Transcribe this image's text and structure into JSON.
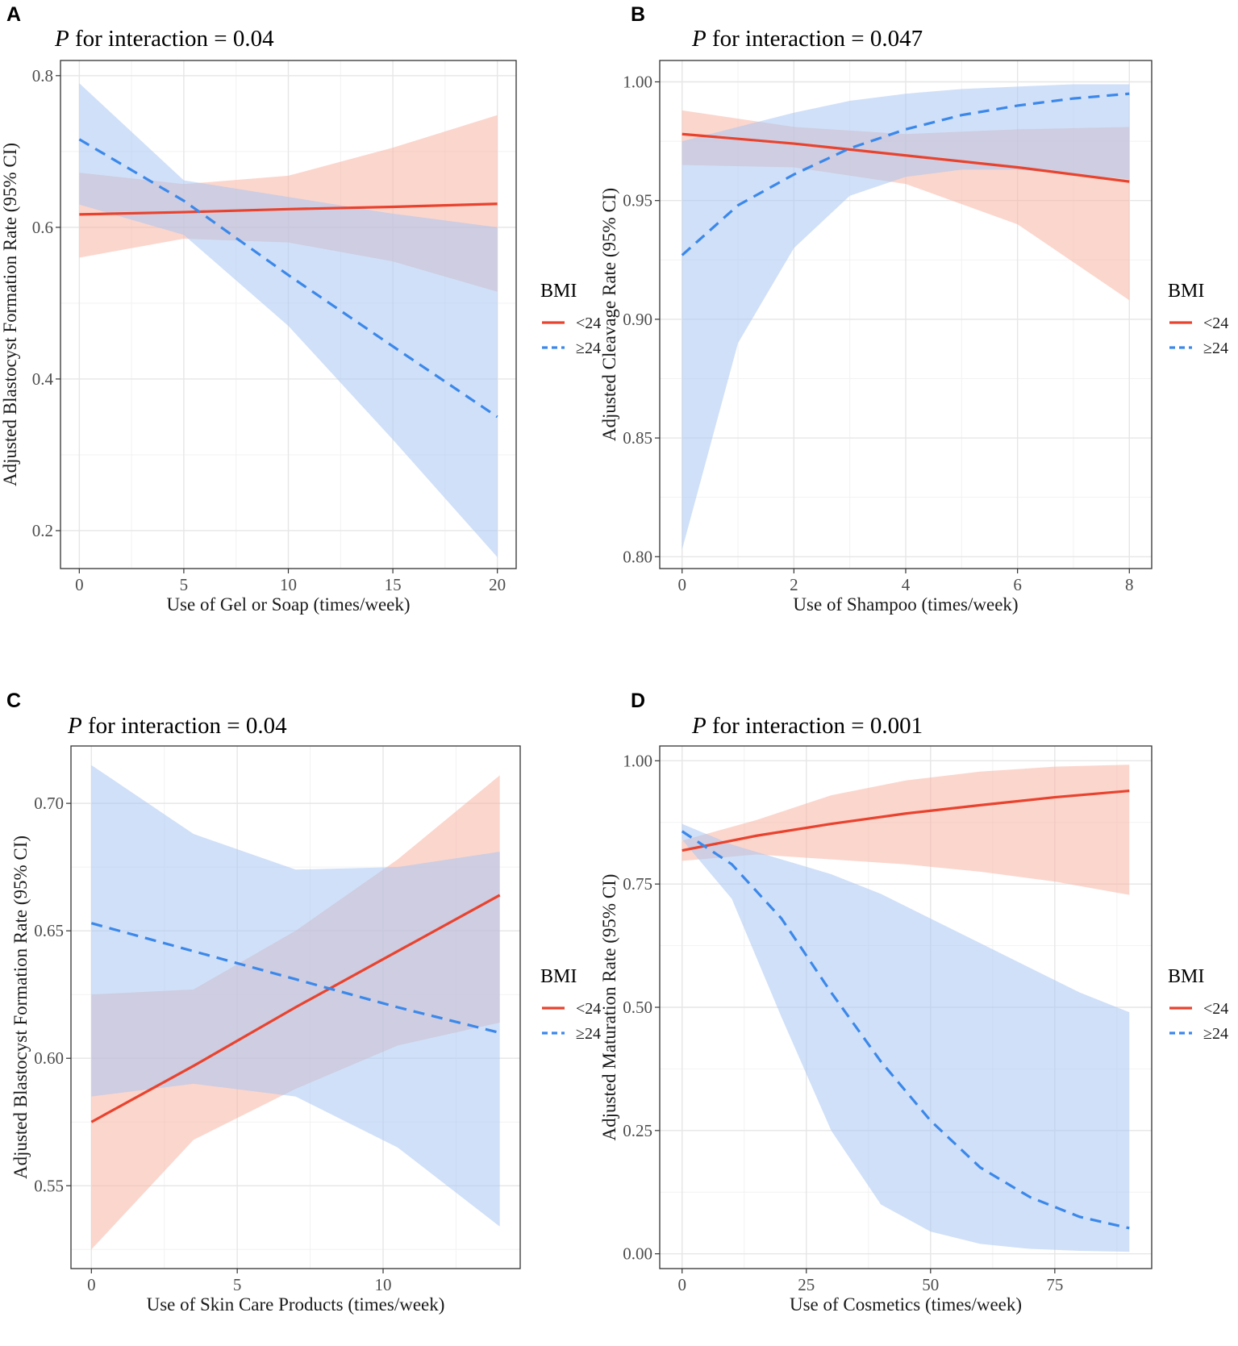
{
  "figure": {
    "legend_title": "BMI",
    "colors": {
      "low_bmi": "#e8432e",
      "high_bmi": "#3b88ea",
      "low_bmi_band": "#f8b4a4",
      "high_bmi_band": "#a9c7f3"
    }
  },
  "chart_data": [
    {
      "panel": "A",
      "type": "line",
      "title_p": "P",
      "title_rest": " for interaction = 0.04",
      "xlabel": "Use of Gel or Soap (times/week)",
      "ylabel": "Adjusted Blastocyst Formation Rate (95% CI)",
      "xlim": [
        -0.9,
        20.9
      ],
      "ylim": [
        0.15,
        0.82
      ],
      "xticks": [
        0,
        5,
        10,
        15,
        20
      ],
      "yticks": [
        0.2,
        0.4,
        0.6,
        0.8
      ],
      "ytick_labels": [
        "0.2",
        "0.4",
        "0.6",
        "0.8"
      ],
      "series": [
        {
          "name": "<24",
          "style": "solid",
          "x": [
            0,
            5,
            10,
            15,
            20
          ],
          "y": [
            0.617,
            0.62,
            0.624,
            0.627,
            0.631
          ],
          "lower": [
            0.56,
            0.585,
            0.58,
            0.555,
            0.515
          ],
          "upper": [
            0.672,
            0.657,
            0.668,
            0.705,
            0.748
          ]
        },
        {
          "name": "≥24",
          "style": "dashed",
          "x": [
            0,
            5,
            10,
            15,
            20
          ],
          "y": [
            0.716,
            0.635,
            0.537,
            0.443,
            0.35
          ],
          "lower": [
            0.63,
            0.59,
            0.47,
            0.32,
            0.165
          ],
          "upper": [
            0.79,
            0.662,
            0.64,
            0.618,
            0.6
          ]
        }
      ]
    },
    {
      "panel": "B",
      "type": "line",
      "title_p": "P",
      "title_rest": " for interaction = 0.047",
      "xlabel": "Use of Shampoo (times/week)",
      "ylabel": "Adjusted Cleavage Rate (95% CI)",
      "xlim": [
        -0.4,
        8.4
      ],
      "ylim": [
        0.795,
        1.009
      ],
      "xticks": [
        0,
        2,
        4,
        6,
        8
      ],
      "yticks": [
        0.8,
        0.85,
        0.9,
        0.95,
        1.0
      ],
      "ytick_labels": [
        "0.80",
        "0.85",
        "0.90",
        "0.95",
        "1.00"
      ],
      "series": [
        {
          "name": "<24",
          "style": "solid",
          "x": [
            0,
            2,
            4,
            6,
            8
          ],
          "y": [
            0.978,
            0.974,
            0.969,
            0.964,
            0.958
          ],
          "lower": [
            0.965,
            0.964,
            0.957,
            0.94,
            0.908
          ],
          "upper": [
            0.988,
            0.981,
            0.978,
            0.98,
            0.981
          ]
        },
        {
          "name": "≥24",
          "style": "dashed",
          "x": [
            0,
            1,
            2,
            3,
            4,
            5,
            6,
            7,
            8
          ],
          "y": [
            0.927,
            0.948,
            0.961,
            0.972,
            0.98,
            0.986,
            0.99,
            0.993,
            0.995
          ],
          "lower": [
            0.803,
            0.89,
            0.93,
            0.952,
            0.96,
            0.963,
            0.963,
            0.961,
            0.959
          ],
          "upper": [
            0.975,
            0.981,
            0.987,
            0.992,
            0.995,
            0.997,
            0.998,
            0.999,
            0.999
          ]
        }
      ]
    },
    {
      "panel": "C",
      "type": "line",
      "title_p": "P",
      "title_rest": " for interaction = 0.04",
      "xlabel": "Use of Skin Care Products (times/week)",
      "ylabel": "Adjusted Blastocyst Formation Rate (95% CI)",
      "xlim": [
        -0.7,
        14.7
      ],
      "ylim": [
        0.5175,
        0.7225
      ],
      "xticks": [
        0,
        5,
        10
      ],
      "yticks": [
        0.55,
        0.6,
        0.65,
        0.7
      ],
      "ytick_labels": [
        "0.55",
        "0.60",
        "0.65",
        "0.70"
      ],
      "series": [
        {
          "name": "<24",
          "style": "solid",
          "x": [
            0,
            3.5,
            7,
            10.5,
            14
          ],
          "y": [
            0.575,
            0.597,
            0.62,
            0.642,
            0.664
          ],
          "lower": [
            0.525,
            0.568,
            0.588,
            0.605,
            0.614
          ],
          "upper": [
            0.625,
            0.627,
            0.65,
            0.678,
            0.711
          ]
        },
        {
          "name": "≥24",
          "style": "dashed",
          "x": [
            0,
            3.5,
            7,
            10.5,
            14
          ],
          "y": [
            0.653,
            0.642,
            0.631,
            0.62,
            0.61
          ],
          "lower": [
            0.585,
            0.59,
            0.585,
            0.565,
            0.534
          ],
          "upper": [
            0.715,
            0.688,
            0.674,
            0.675,
            0.681
          ]
        }
      ]
    },
    {
      "panel": "D",
      "type": "line",
      "title_p": "P",
      "title_rest": " for interaction = 0.001",
      "xlabel": "Use of Cosmetics (times/week)",
      "ylabel": "Adjusted Maturation Rate (95% CI)",
      "xlim": [
        -4.5,
        94.5
      ],
      "ylim": [
        -0.03,
        1.03
      ],
      "xticks": [
        0,
        25,
        50,
        75
      ],
      "yticks": [
        0.0,
        0.25,
        0.5,
        0.75,
        1.0
      ],
      "ytick_labels": [
        "0.00",
        "0.25",
        "0.50",
        "0.75",
        "1.00"
      ],
      "series": [
        {
          "name": "<24",
          "style": "solid",
          "x": [
            0,
            15,
            30,
            45,
            60,
            75,
            90
          ],
          "y": [
            0.818,
            0.848,
            0.872,
            0.893,
            0.91,
            0.926,
            0.939
          ],
          "lower": [
            0.797,
            0.81,
            0.8,
            0.79,
            0.775,
            0.755,
            0.728
          ],
          "upper": [
            0.838,
            0.88,
            0.93,
            0.96,
            0.978,
            0.988,
            0.992
          ]
        },
        {
          "name": "≥24",
          "style": "dashed",
          "x": [
            0,
            10,
            20,
            30,
            40,
            50,
            60,
            70,
            80,
            90
          ],
          "y": [
            0.857,
            0.79,
            0.68,
            0.53,
            0.39,
            0.27,
            0.175,
            0.115,
            0.075,
            0.052
          ],
          "lower": [
            0.84,
            0.72,
            0.48,
            0.25,
            0.1,
            0.045,
            0.02,
            0.01,
            0.006,
            0.004
          ],
          "upper": [
            0.872,
            0.83,
            0.8,
            0.77,
            0.73,
            0.68,
            0.63,
            0.58,
            0.53,
            0.49
          ]
        }
      ]
    }
  ]
}
